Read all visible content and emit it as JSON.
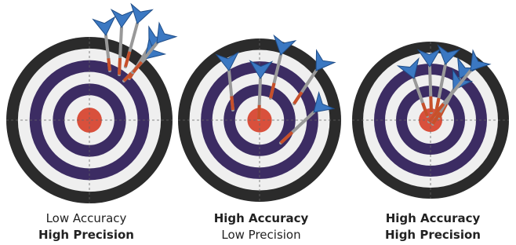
{
  "panels": [
    {
      "lines": [
        "Low Accuracy",
        "High Precision"
      ]
    },
    {
      "lines": [
        "High Accuracy",
        "Low Precision"
      ]
    },
    {
      "lines": [
        "High Accuracy",
        "High Precision"
      ]
    }
  ]
}
